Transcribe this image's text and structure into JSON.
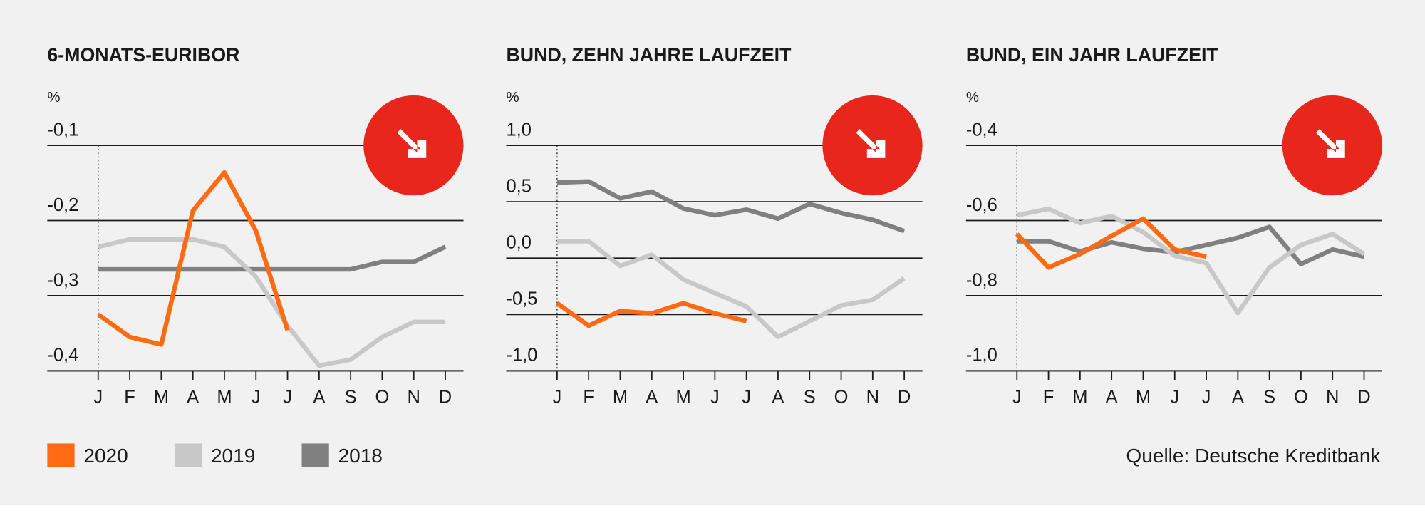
{
  "chart_data": [
    {
      "type": "line",
      "title": "6-MONATS-EURIBOR",
      "y_label": "%",
      "categories": [
        "J",
        "F",
        "M",
        "A",
        "M",
        "J",
        "J",
        "A",
        "S",
        "O",
        "N",
        "D"
      ],
      "ylim": [
        -0.4,
        -0.1
      ],
      "yticks": [
        {
          "value": -0.1,
          "label": "-0,1"
        },
        {
          "value": -0.2,
          "label": "-0,2"
        },
        {
          "value": -0.3,
          "label": "-0,3"
        },
        {
          "value": -0.4,
          "label": "-0,4"
        }
      ],
      "grid": true,
      "series": [
        {
          "name": "2020",
          "color": "#ff6a13",
          "values": [
            -0.325,
            -0.355,
            -0.365,
            -0.187,
            -0.136,
            -0.214,
            -0.346,
            null,
            null,
            null,
            null,
            null
          ]
        },
        {
          "name": "2019",
          "color": "#c8c8c8",
          "values": [
            -0.235,
            -0.225,
            -0.225,
            -0.225,
            -0.235,
            -0.275,
            -0.34,
            -0.393,
            -0.385,
            -0.355,
            -0.335,
            -0.335
          ]
        },
        {
          "name": "2018",
          "color": "#808080",
          "values": [
            -0.265,
            -0.265,
            -0.265,
            -0.265,
            -0.265,
            -0.265,
            -0.265,
            -0.265,
            -0.265,
            -0.255,
            -0.255,
            -0.235
          ]
        }
      ]
    },
    {
      "type": "line",
      "title": "BUND, ZEHN JAHRE LAUFZEIT",
      "y_label": "%",
      "categories": [
        "J",
        "F",
        "M",
        "A",
        "M",
        "J",
        "J",
        "A",
        "S",
        "O",
        "N",
        "D"
      ],
      "ylim": [
        -1.0,
        1.0
      ],
      "yticks": [
        {
          "value": 1.0,
          "label": "1,0"
        },
        {
          "value": 0.5,
          "label": "0,5"
        },
        {
          "value": 0.0,
          "label": "0,0"
        },
        {
          "value": -0.5,
          "label": "-0,5"
        },
        {
          "value": -1.0,
          "label": "-1,0"
        }
      ],
      "grid": true,
      "series": [
        {
          "name": "2020",
          "color": "#ff6a13",
          "values": [
            -0.4,
            -0.6,
            -0.47,
            -0.49,
            -0.4,
            -0.49,
            -0.56,
            null,
            null,
            null,
            null,
            null
          ]
        },
        {
          "name": "2019",
          "color": "#c8c8c8",
          "values": [
            0.15,
            0.15,
            -0.07,
            0.03,
            -0.19,
            -0.31,
            -0.43,
            -0.7,
            -0.56,
            -0.42,
            -0.37,
            -0.18
          ]
        },
        {
          "name": "2018",
          "color": "#808080",
          "values": [
            0.67,
            0.68,
            0.53,
            0.59,
            0.44,
            0.38,
            0.43,
            0.35,
            0.48,
            0.4,
            0.34,
            0.24
          ]
        }
      ]
    },
    {
      "type": "line",
      "title": "BUND, EIN JAHR LAUFZEIT",
      "y_label": "%",
      "categories": [
        "J",
        "F",
        "M",
        "A",
        "M",
        "J",
        "J",
        "A",
        "S",
        "O",
        "N",
        "D"
      ],
      "ylim": [
        -1.0,
        -0.4
      ],
      "yticks": [
        {
          "value": -0.4,
          "label": "-0,4"
        },
        {
          "value": -0.6,
          "label": "-0,6"
        },
        {
          "value": -0.8,
          "label": "-0,8"
        },
        {
          "value": -1.0,
          "label": "-1,0"
        }
      ],
      "grid": true,
      "series": [
        {
          "name": "2020",
          "color": "#ff6a13",
          "values": [
            -0.636,
            -0.725,
            -0.689,
            -0.641,
            -0.595,
            -0.677,
            -0.696,
            null,
            null,
            null,
            null,
            null
          ]
        },
        {
          "name": "2019",
          "color": "#c8c8c8",
          "values": [
            -0.586,
            -0.569,
            -0.607,
            -0.588,
            -0.631,
            -0.694,
            -0.713,
            -0.846,
            -0.725,
            -0.665,
            -0.636,
            -0.689
          ]
        },
        {
          "name": "2018",
          "color": "#808080",
          "values": [
            -0.655,
            -0.655,
            -0.682,
            -0.658,
            -0.675,
            -0.684,
            -0.665,
            -0.646,
            -0.617,
            -0.716,
            -0.677,
            -0.696
          ]
        }
      ]
    }
  ],
  "source": "Quelle: Deutsche Kreditbank"
}
